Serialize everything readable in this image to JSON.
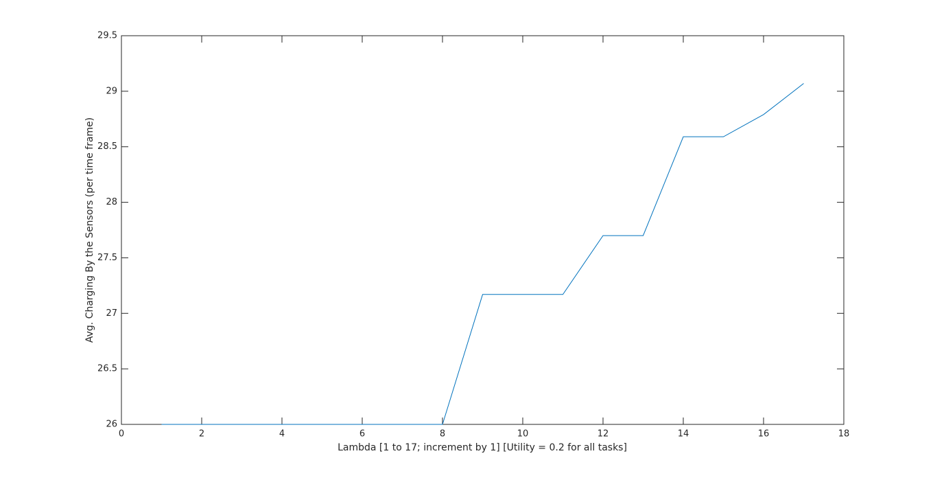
{
  "chart_data": {
    "type": "line",
    "xlabel": "Lambda [1 to 17; increment by 1] [Utility = 0.2 for all tasks]",
    "ylabel": "Avg. Charging By the Sensors (per time frame)",
    "x": [
      1,
      2,
      3,
      4,
      5,
      6,
      7,
      8,
      9,
      10,
      11,
      12,
      13,
      14,
      15,
      16,
      17
    ],
    "values": [
      26,
      26,
      26,
      26,
      26,
      26,
      26,
      26,
      27.17,
      27.17,
      27.17,
      27.7,
      27.7,
      28.59,
      28.59,
      28.79,
      29.07
    ],
    "color": "#0072bd",
    "xlim": [
      0,
      18
    ],
    "xticks": [
      0,
      2,
      4,
      6,
      8,
      10,
      12,
      14,
      16,
      18
    ],
    "ylim": [
      26,
      29.5
    ],
    "yticks": [
      26,
      26.5,
      27,
      27.5,
      28,
      28.5,
      29,
      29.5
    ],
    "grid": false
  }
}
